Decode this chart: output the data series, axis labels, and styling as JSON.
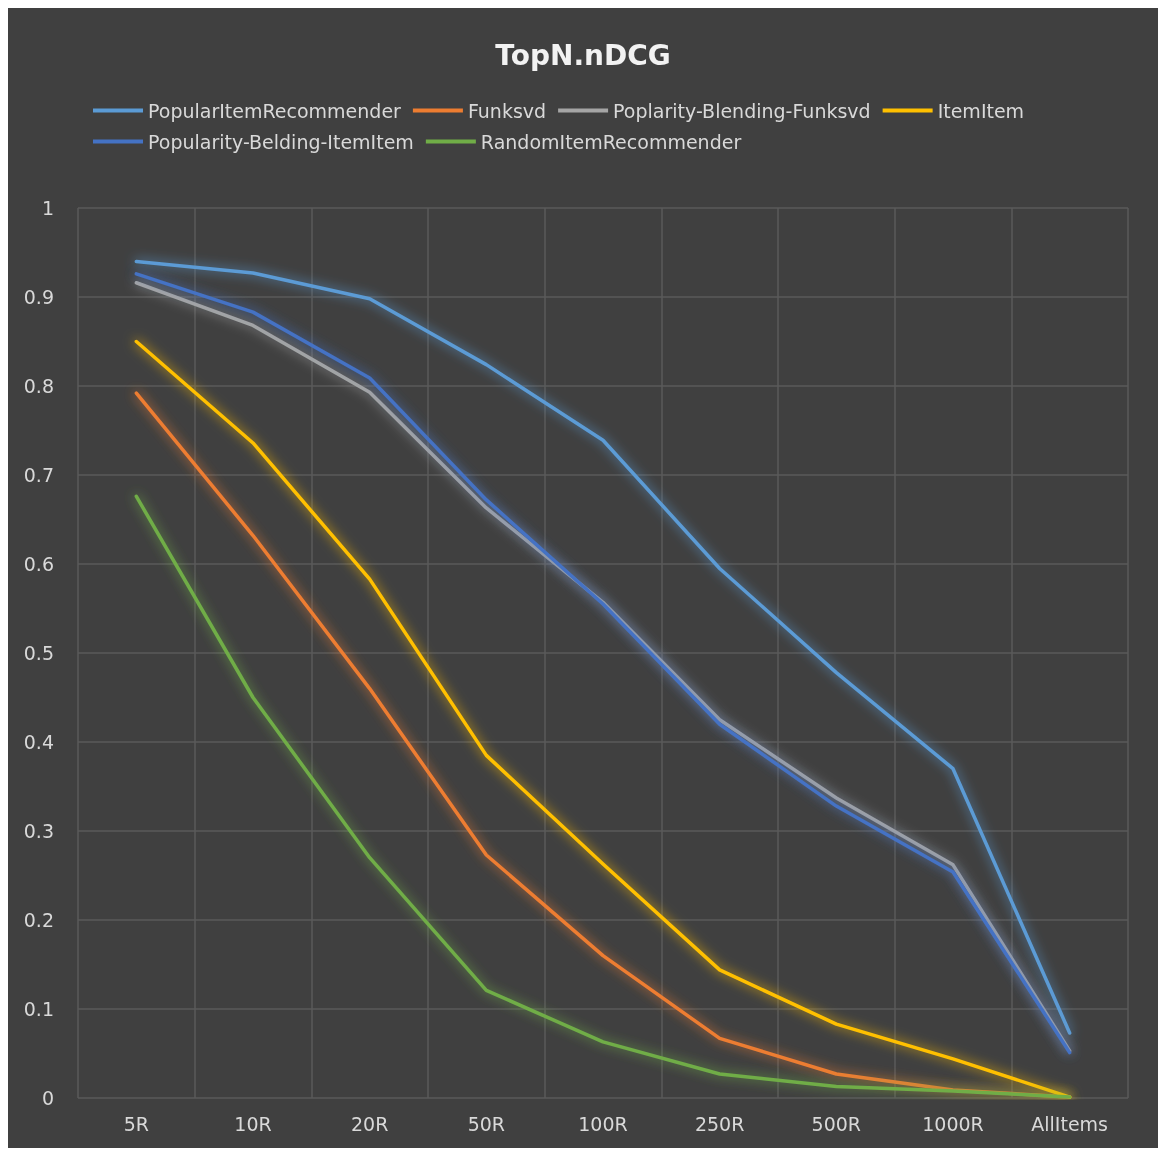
{
  "chart_data": {
    "type": "line",
    "title": "TopN.nDCG",
    "categories": [
      "5R",
      "10R",
      "20R",
      "50R",
      "100R",
      "250R",
      "500R",
      "1000R",
      "AllItems"
    ],
    "series": [
      {
        "name": "PopularItemRecommender",
        "color": "#5b9bd5",
        "values": [
          0.94,
          0.927,
          0.898,
          0.824,
          0.739,
          0.595,
          0.478,
          0.37,
          0.073
        ]
      },
      {
        "name": "Funksvd",
        "color": "#ed7d31",
        "values": [
          0.792,
          0.632,
          0.46,
          0.273,
          0.16,
          0.067,
          0.027,
          0.009,
          0.001
        ]
      },
      {
        "name": "Poplarity-Blending-Funksvd",
        "color": "#a5a5a5",
        "values": [
          0.916,
          0.868,
          0.793,
          0.663,
          0.557,
          0.425,
          0.337,
          0.262,
          0.053
        ]
      },
      {
        "name": "ItemItem",
        "color": "#ffc000",
        "values": [
          0.85,
          0.736,
          0.583,
          0.385,
          0.263,
          0.144,
          0.083,
          0.044,
          0.001
        ]
      },
      {
        "name": "Popularity-Belding-ItemItem",
        "color": "#4472c4",
        "values": [
          0.926,
          0.883,
          0.809,
          0.672,
          0.555,
          0.42,
          0.328,
          0.254,
          0.051
        ]
      },
      {
        "name": "RandomItemRecommender",
        "color": "#70ad47",
        "values": [
          0.676,
          0.45,
          0.27,
          0.121,
          0.063,
          0.027,
          0.013,
          0.008,
          0.001
        ]
      }
    ],
    "ylim": [
      0,
      1
    ],
    "yticks": [
      0,
      0.1,
      0.2,
      0.3,
      0.4,
      0.5,
      0.6,
      0.7,
      0.8,
      0.9,
      1
    ],
    "grid": true,
    "legend": "top",
    "marker": "none",
    "line_style": "solid"
  }
}
